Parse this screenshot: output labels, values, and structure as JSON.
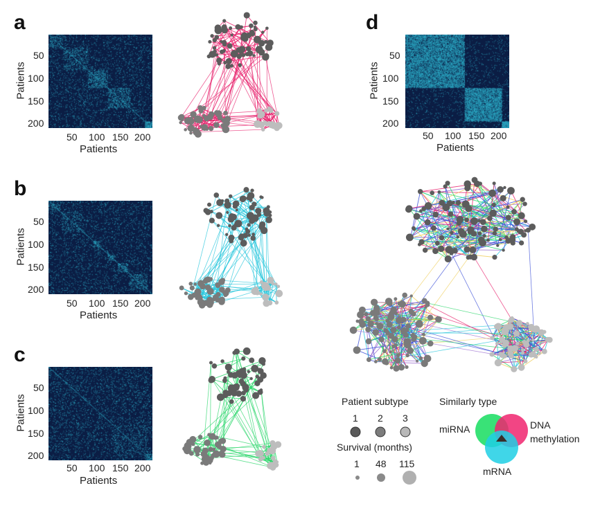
{
  "panels": {
    "a": {
      "letter": "a",
      "xlabel": "Patients",
      "ylabel": "Patients",
      "color": "#e8246e",
      "xticks": [
        "50",
        "100",
        "150",
        "200"
      ],
      "yticks": [
        "50",
        "100",
        "150",
        "200"
      ]
    },
    "b": {
      "letter": "b",
      "xlabel": "Patients",
      "ylabel": "Patients",
      "color": "#26c6dc",
      "xticks": [
        "50",
        "100",
        "150",
        "200"
      ],
      "yticks": [
        "50",
        "100",
        "150",
        "200"
      ]
    },
    "c": {
      "letter": "c",
      "xlabel": "Patients",
      "ylabel": "Patients",
      "color": "#2ad66a",
      "xticks": [
        "50",
        "100",
        "150",
        "200"
      ],
      "yticks": [
        "50",
        "100",
        "150",
        "200"
      ]
    },
    "d": {
      "letter": "d",
      "xlabel": "Patients",
      "ylabel": "Patients",
      "color": "#9a6cd0",
      "xticks": [
        "50",
        "100",
        "150",
        "200"
      ],
      "yticks": [
        "50",
        "100",
        "150",
        "200"
      ]
    }
  },
  "heatmap_colors": {
    "background": "#0b1d44",
    "high": "#36d0e8"
  },
  "legend": {
    "subtype_title": "Patient subtype",
    "subtypes": [
      {
        "label": "1",
        "color": "#5a5a5a"
      },
      {
        "label": "2",
        "color": "#7c7c7c"
      },
      {
        "label": "3",
        "color": "#b8b8b8"
      }
    ],
    "survival_title": "Survival (months)",
    "survival": [
      {
        "label": "1"
      },
      {
        "label": "48"
      },
      {
        "label": "115"
      }
    ],
    "similarity_title": "Similarly type",
    "types": [
      {
        "label": "miRNA",
        "color": "#2ee070"
      },
      {
        "label": "DNA\nmethylation",
        "color": "#f0246e"
      },
      {
        "label": "mRNA",
        "color": "#1ecfe4"
      }
    ]
  }
}
